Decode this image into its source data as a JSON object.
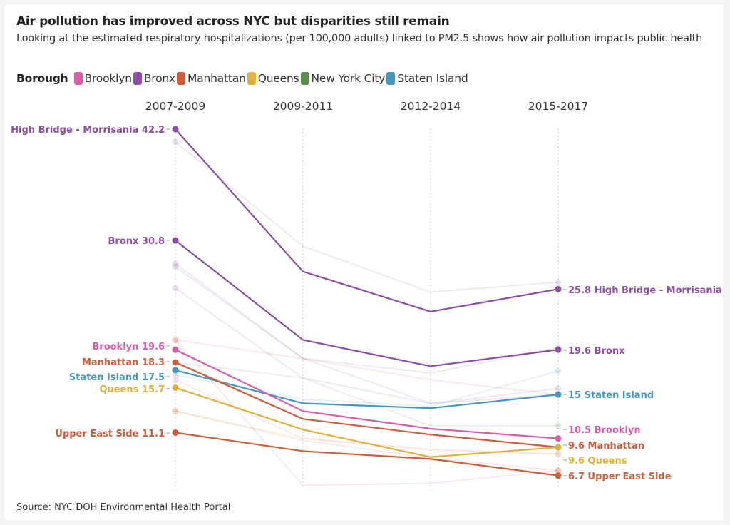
{
  "chart_data": {
    "type": "line",
    "title": "Air pollution has improved across NYC but disparities still remain",
    "subtitle": "Looking at the estimated respiratory hospitalizations (per 100,000 adults) linked to PM2.5 shows how air pollution impacts public health",
    "legend": {
      "title": "Borough",
      "placement": "top-left",
      "entries": [
        {
          "name": "Brooklyn",
          "color": "#d660a8"
        },
        {
          "name": "Bronx",
          "color": "#8c4fa3"
        },
        {
          "name": "Manhattan",
          "color": "#cc5e3c"
        },
        {
          "name": "Queens",
          "color": "#e0b23b"
        },
        {
          "name": "New York City",
          "color": "#5b8c50"
        },
        {
          "name": "Staten Island",
          "color": "#4597c0"
        }
      ]
    },
    "categories": [
      "2007-2009",
      "2009-2011",
      "2012-2014",
      "2015-2017"
    ],
    "ylim": [
      5.5,
      43
    ],
    "grid": "vertical dotted lines at each period",
    "series": [
      {
        "name": "High Bridge - Morrisania",
        "borough": "Bronx",
        "values": [
          42.2,
          27.6,
          23.5,
          25.8
        ],
        "start_label": "High Bridge - Morrisania 42.2",
        "end_label": "25.8 High Bridge - Morrisania"
      },
      {
        "name": "Bronx",
        "borough": "Bronx",
        "values": [
          30.8,
          20.6,
          17.9,
          19.6
        ],
        "start_label": "Bronx 30.8",
        "end_label": "19.6 Bronx"
      },
      {
        "name": "Staten Island",
        "borough": "Staten Island",
        "values": [
          17.5,
          14.1,
          13.6,
          15.0
        ],
        "start_label": "Staten Island 17.5",
        "end_label": "15 Staten Island"
      },
      {
        "name": "Brooklyn",
        "borough": "Brooklyn",
        "values": [
          19.6,
          13.3,
          11.5,
          10.5
        ],
        "start_label": "Brooklyn 19.6",
        "end_label": "10.5 Brooklyn"
      },
      {
        "name": "Manhattan",
        "borough": "Manhattan",
        "values": [
          18.3,
          12.5,
          10.9,
          9.6
        ],
        "start_label": "Manhattan 18.3",
        "end_label": "9.6 Manhattan"
      },
      {
        "name": "Queens",
        "borough": "Queens",
        "values": [
          15.7,
          11.4,
          8.6,
          9.6
        ],
        "start_label": "Queens 15.7",
        "end_label": "9.6 Queens"
      },
      {
        "name": "Upper East Side",
        "borough": "Manhattan",
        "values": [
          11.1,
          9.2,
          8.4,
          6.7
        ],
        "start_label": "Upper East Side 11.1",
        "end_label": "6.7 Upper East Side"
      }
    ],
    "background_series": [
      {
        "borough": "Bronx",
        "values": [
          40.9,
          30.2,
          25.5,
          26.5
        ]
      },
      {
        "borough": "Bronx",
        "values": [
          28.4,
          18.7,
          17.2,
          19.8
        ]
      },
      {
        "borough": "Bronx",
        "values": [
          28.1,
          18.7,
          14.1,
          15.6
        ]
      },
      {
        "borough": "Bronx",
        "values": [
          25.9,
          16.7,
          14.1,
          15.0
        ]
      },
      {
        "borough": "Manhattan",
        "values": [
          20.6,
          18.7,
          16.5,
          15.0
        ]
      },
      {
        "borough": "Manhattan",
        "values": [
          20.6,
          5.7,
          5.9,
          7.2
        ]
      },
      {
        "borough": "New York City",
        "values": [
          18.3,
          16.7,
          11.8,
          11.8
        ]
      },
      {
        "borough": "Staten Island",
        "values": [
          17.0,
          14.5,
          13.8,
          17.4
        ]
      },
      {
        "borough": "Brooklyn",
        "values": [
          16.5,
          10.5,
          9.4,
          8.9
        ]
      },
      {
        "borough": "Queens",
        "values": [
          13.3,
          10.5,
          9.3,
          8.9
        ]
      },
      {
        "borough": "Manhattan",
        "values": [
          13.3,
          10.3,
          8.5,
          7.2
        ]
      }
    ],
    "source": "Source: NYC DOH Environmental Health Portal"
  }
}
